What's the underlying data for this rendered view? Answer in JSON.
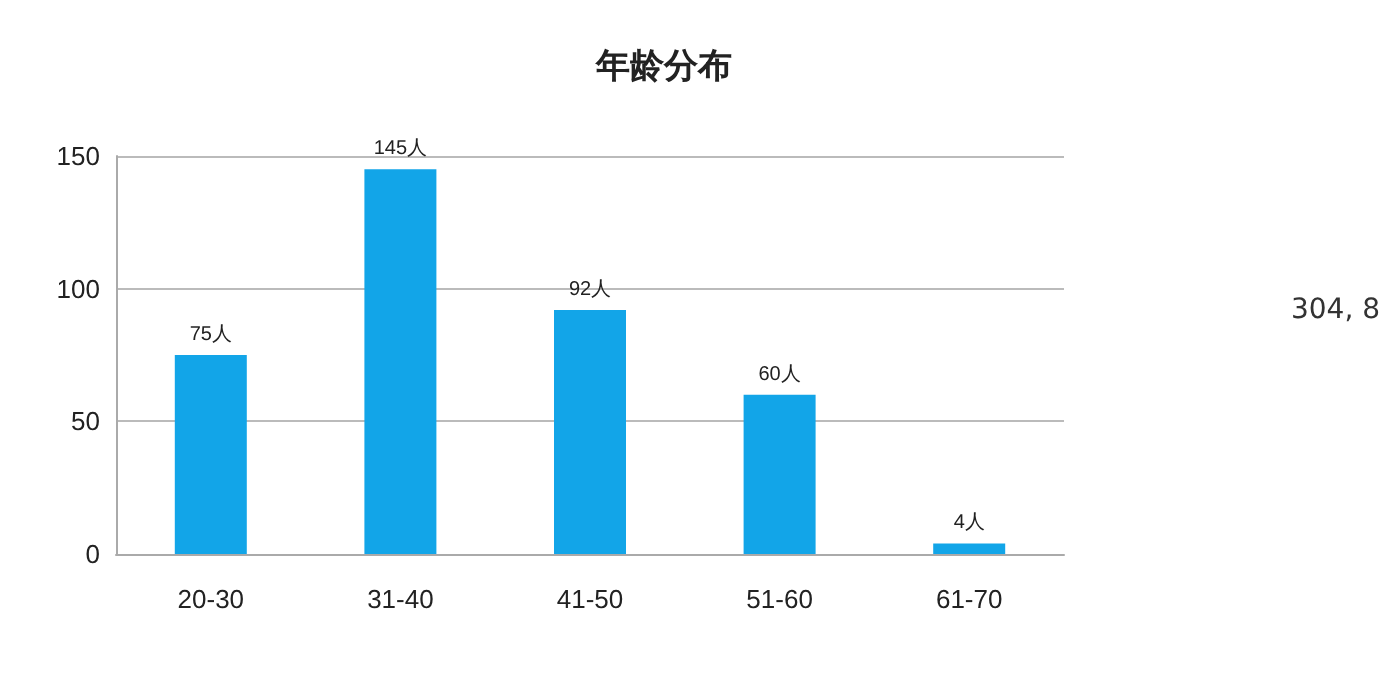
{
  "chart_data": {
    "type": "bar",
    "title": "年龄分布",
    "categories": [
      "20-30",
      "31-40",
      "41-50",
      "51-60",
      "61-70"
    ],
    "values": [
      75,
      145,
      92,
      60,
      4
    ],
    "value_labels": [
      "75人",
      "145人",
      "92人",
      "60人",
      "4人"
    ],
    "color": "#12a5e8",
    "ylim": [
      0,
      150
    ],
    "yticks": [
      0,
      50,
      100,
      150
    ],
    "grid": "y",
    "annotations": [
      "304, 8"
    ]
  }
}
